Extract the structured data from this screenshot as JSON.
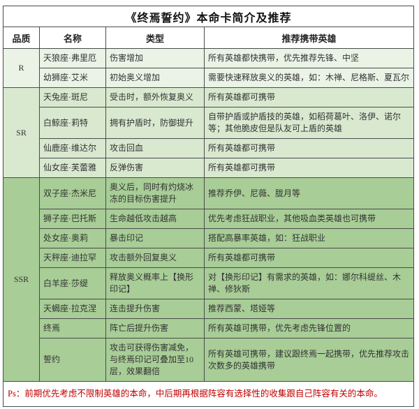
{
  "title": "《终焉誓约》本命卡简介及推荐",
  "columns": [
    "品质",
    "名称",
    "类型",
    "推荐携带英雄"
  ],
  "groups": [
    {
      "tier": "R",
      "color": "#eaf3e6",
      "rows": [
        {
          "name": "天狼座·弗里厄",
          "type": "伤害增加",
          "heroes": "所有英雄都快携带，优先推荐先锋、中坚"
        },
        {
          "name": "幼狮座·艾米",
          "type": "初始奥义增加",
          "heroes": "需要快速释放奥义的英雄，如：木禅、尼格斯、夏瓦尔"
        }
      ]
    },
    {
      "tier": "SR",
      "color": "#d9e9d0",
      "rows": [
        {
          "name": "天兔座·斑尼",
          "type": "受击时，额外恢复奥义",
          "heroes": "所有英雄都可携带"
        },
        {
          "name": "白鲸座·莉特",
          "type": "拥有护盾时，防御提升",
          "heroes": "自带护盾或护盾技的英雄，如稻荷葛叶、洛伊、诺尔等；其他脆皮但是队友可上盾的英雄"
        },
        {
          "name": "仙鹿座·维达尔",
          "type": "攻击回血",
          "heroes": "所有英雄都可携带"
        },
        {
          "name": "仙女座·芙蕾雅",
          "type": "反弹伤害",
          "heroes": "所有英雄都可携带"
        }
      ]
    },
    {
      "tier": "SSR",
      "color": "#a8cd97",
      "rows": [
        {
          "name": "双子座·杰米尼",
          "type": "奥义后，同时有灼烧冰冻的目标伤害提升",
          "heroes": "推荐乔伊、尼薇、胧月等"
        },
        {
          "name": "狮子座·巴托斯",
          "type": "生命越低攻击越高",
          "heroes": "优先考虑狂战职业，其他吸血类英雄也可携带"
        },
        {
          "name": "处女座·奥莉",
          "type": "暴击印记",
          "heroes": "搭配高暴率英雄，如：狂战职业"
        },
        {
          "name": "天秤座·迪拉罕",
          "type": "攻击额外回复奥义",
          "heroes": "所有英雄都可携带"
        },
        {
          "name": "白羊座·莎缇",
          "type": "释放奥义概率上【换形印记】",
          "heroes": "对【换形印记】有需求的英雄，如：娜尔科缇丝、木禅、修狄斯"
        },
        {
          "name": "天蝎座·拉克涅",
          "type": "连击提升伤害",
          "heroes": "推荐西蒙、塔娅等"
        },
        {
          "name": "终焉",
          "type": "阵亡后提升伤害",
          "heroes": "所有英雄可携带，优先考虑先锋位置的"
        },
        {
          "name": "誓约",
          "type": "攻击可获得伤害减免，与终焉印记可叠加至10层，效果翻倍",
          "heroes": "所有英雄可携带，建议跟终焉一起携带，优先推荐攻击次数多的英雄携带"
        }
      ]
    }
  ],
  "footer_note": "Ps：前期优先考虑不限制英雄的本命，中后期再根据阵容有选择性的收集跟自己阵容有关的本命。",
  "colors": {
    "note_text": "#c00000",
    "border": "#4a4a4a",
    "tier_r_bg": "#eaf3e6",
    "tier_sr_bg": "#d9e9d0",
    "tier_ssr_bg": "#a8cd97"
  }
}
